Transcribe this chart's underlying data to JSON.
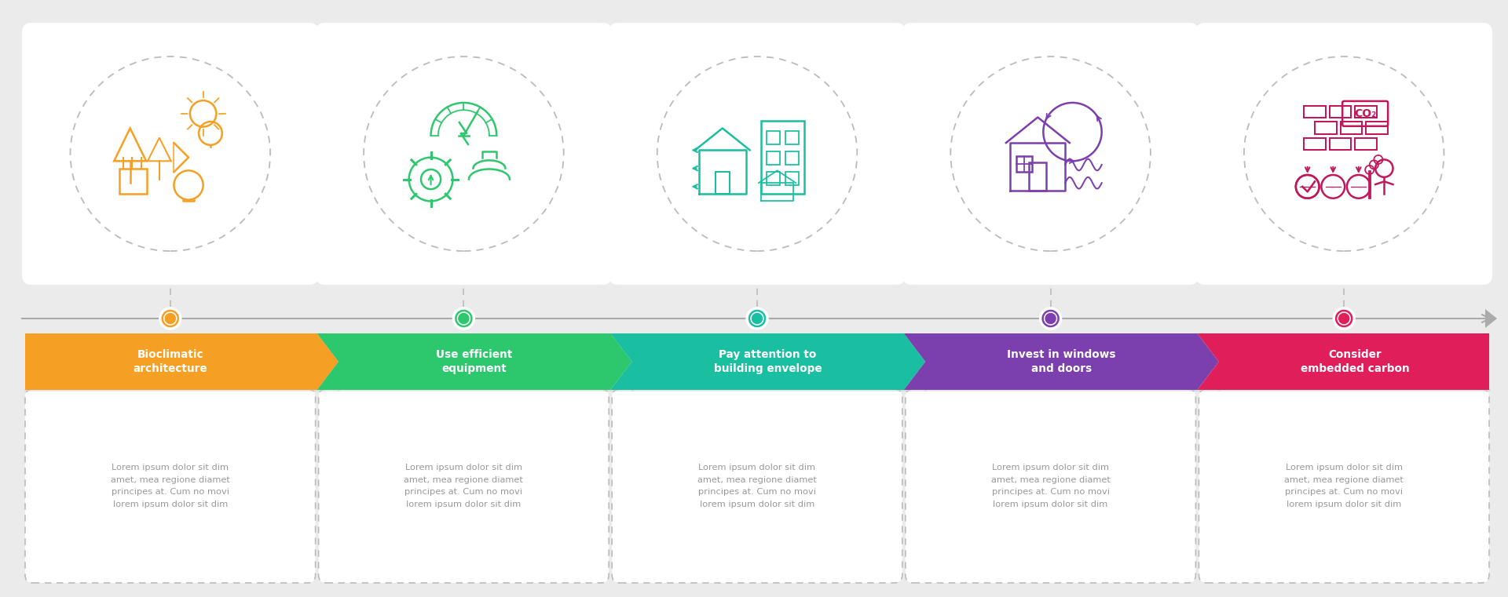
{
  "background_color": "#ebebeb",
  "steps": [
    {
      "title": "Bioclimatic\narchitecture",
      "color": "#F5A024",
      "dot_color": "#F5A024",
      "icon_color": "#F5A024"
    },
    {
      "title": "Use efficient\nequipment",
      "color": "#2DC76D",
      "dot_color": "#2DC76D",
      "icon_color": "#2DC76D"
    },
    {
      "title": "Pay attention to\nbuilding envelope",
      "color": "#19BFA0",
      "dot_color": "#19BFA0",
      "icon_color": "#19BFA0"
    },
    {
      "title": "Invest in windows\nand doors",
      "color": "#7B3FAE",
      "dot_color": "#7B3FAE",
      "icon_color": "#7B3FAE"
    },
    {
      "title": "Consider\nembedded carbon",
      "color": "#E01F5A",
      "dot_color": "#E01F5A",
      "icon_color": "#C2185B"
    }
  ],
  "lorem_text": "Lorem ipsum dolor sit dim\namet, mea regione diamet\nprincipes at. Cum no movi\nlorem ipsum dolor sit dim",
  "timeline_color": "#aaaaaa",
  "dashed_color": "#bbbbbb",
  "text_color": "#999999",
  "white": "#ffffff"
}
